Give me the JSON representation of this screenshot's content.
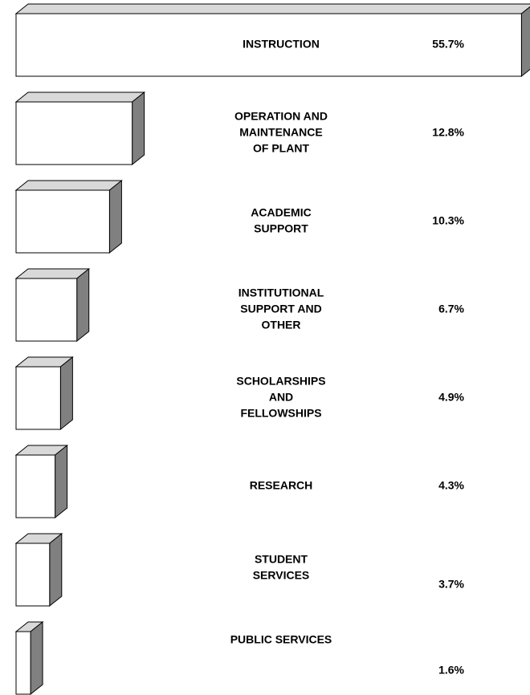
{
  "chart_data": {
    "type": "bar3d",
    "categories": [
      [
        "INSTRUCTION"
      ],
      [
        "OPERATION AND",
        "MAINTENANCE",
        "OF PLANT"
      ],
      [
        "ACADEMIC",
        "SUPPORT"
      ],
      [
        "INSTITUTIONAL",
        "SUPPORT AND",
        "OTHER"
      ],
      [
        "SCHOLARSHIPS",
        "AND",
        "FELLOWSHIPS"
      ],
      [
        "RESEARCH"
      ],
      [
        "STUDENT",
        "SERVICES"
      ],
      [
        "PUBLIC SERVICES"
      ]
    ],
    "values": [
      55.7,
      12.8,
      10.3,
      6.7,
      4.9,
      4.3,
      3.7,
      1.6
    ],
    "value_labels": [
      "55.7%",
      "12.8%",
      "10.3%",
      "6.7%",
      "4.9%",
      "4.3%",
      "3.7%",
      "1.6%"
    ],
    "color": "#ffffff"
  }
}
